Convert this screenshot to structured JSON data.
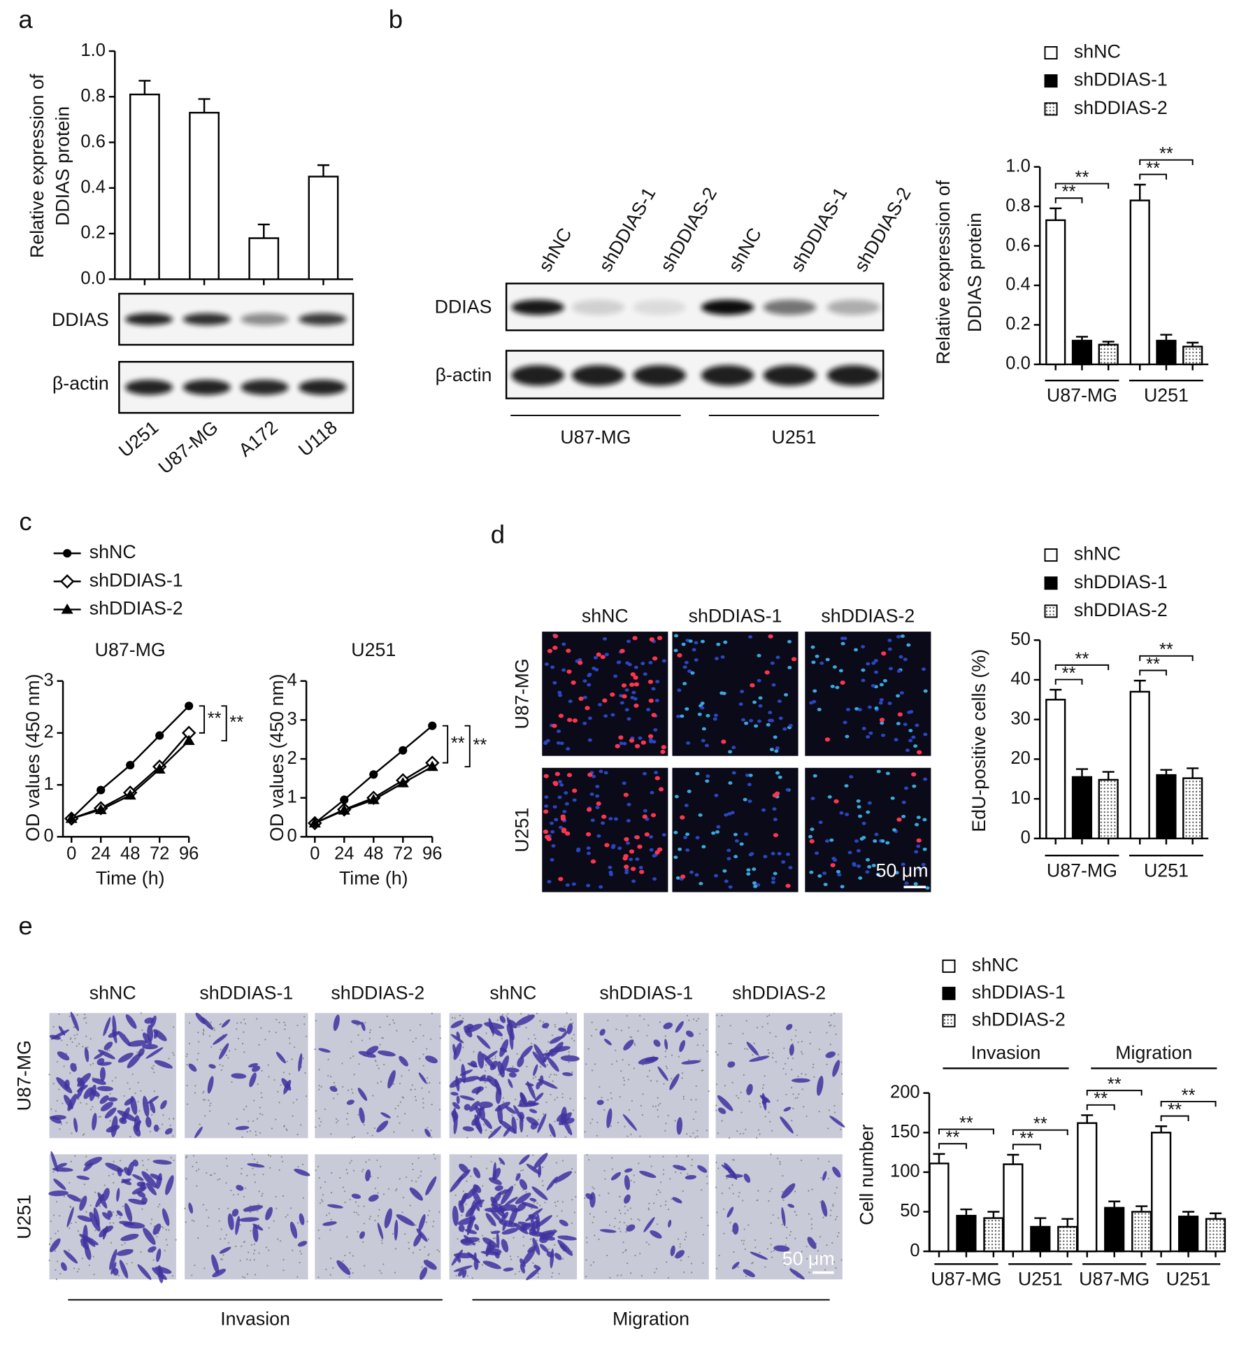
{
  "panel_labels": [
    "a",
    "b",
    "c",
    "d",
    "e"
  ],
  "blots": {
    "a": {
      "rows": [
        "DDIAS",
        "β-actin"
      ]
    },
    "b": {
      "columns": [
        "shNC",
        "shDDIAS-1",
        "shDDIAS-2",
        "shNC",
        "shDDIAS-1",
        "shDDIAS-2"
      ],
      "rows": [
        "DDIAS",
        "β-actin"
      ],
      "groups": [
        "U87-MG",
        "U251"
      ]
    }
  },
  "micrographs": {
    "d": {
      "columns": [
        "shNC",
        "shDDIAS-1",
        "shDDIAS-2"
      ],
      "rows": [
        "U87-MG",
        "U251"
      ],
      "scale": "50 μm"
    },
    "e": {
      "columns": [
        "shNC",
        "shDDIAS-1",
        "shDDIAS-2",
        "shNC",
        "shDDIAS-1",
        "shDDIAS-2"
      ],
      "rows": [
        "U87-MG",
        "U251"
      ],
      "scale": "50 μm",
      "groups": [
        "Invasion",
        "Migration"
      ]
    }
  },
  "chart_data": [
    {
      "type": "bar",
      "y_label": [
        "Relative expression of",
        "DDIAS protein"
      ],
      "categories": [
        "U251",
        "U87-MG",
        "A172",
        "U118"
      ],
      "values": [
        0.81,
        0.73,
        0.18,
        0.45
      ],
      "errors": [
        0.06,
        0.06,
        0.06,
        0.05
      ],
      "color": "#ffffff",
      "ylim": [
        0,
        1
      ],
      "yticks": [
        {
          "value": 0,
          "label": "0.0"
        },
        0.2,
        0.4,
        0.6,
        0.8,
        {
          "value": 1,
          "label": "1.0"
        }
      ]
    },
    {
      "type": "grouped_bar",
      "y_label": [
        "Relative expression of",
        "DDIAS protein"
      ],
      "categories": [
        "U87-MG",
        "U251"
      ],
      "series": [
        {
          "name": "shNC",
          "color": "#ffffff",
          "values": [
            0.73,
            0.83
          ],
          "errors": [
            0.06,
            0.08
          ]
        },
        {
          "name": "shDDIAS-1",
          "color": "#000000",
          "values": [
            0.12,
            0.12
          ],
          "errors": [
            0.02,
            0.03
          ]
        },
        {
          "name": "shDDIAS-2",
          "color": "#ffffff",
          "pattern": "dots",
          "values": [
            0.1,
            0.09
          ],
          "errors": [
            0.015,
            0.02
          ]
        }
      ],
      "ylim": [
        0,
        1
      ],
      "yticks": [
        {
          "value": 0,
          "label": "0.0"
        },
        0.2,
        0.4,
        0.6,
        0.8,
        {
          "value": 1,
          "label": "1.0"
        }
      ],
      "significance": [
        "**",
        "**",
        "**",
        "**"
      ]
    },
    {
      "type": "line",
      "title": "U87-MG",
      "x_label": "Time (h)",
      "y_label": "OD values (450 nm)",
      "x": [
        0,
        24,
        48,
        72,
        96
      ],
      "series": [
        {
          "name": "shNC",
          "marker": "circle",
          "values": [
            0.35,
            0.9,
            1.38,
            1.95,
            2.52
          ],
          "errors": [
            0.03,
            0.08,
            0.04,
            0.07,
            0.06
          ]
        },
        {
          "name": "shDDIAS-1",
          "marker": "diamond",
          "values": [
            0.35,
            0.55,
            0.85,
            1.35,
            2.0
          ],
          "errors": [
            0.03,
            0.05,
            0.07,
            0.05,
            0.07
          ]
        },
        {
          "name": "shDDIAS-2",
          "marker": "triangle",
          "values": [
            0.35,
            0.52,
            0.8,
            1.3,
            1.85
          ],
          "errors": [
            0.03,
            0.04,
            0.05,
            0.05,
            0.06
          ]
        }
      ],
      "xlim": [
        0,
        96
      ],
      "xticks": [
        0,
        24,
        48,
        72,
        96
      ],
      "ylim": [
        0,
        3
      ],
      "yticks": [
        0,
        1,
        2,
        3
      ],
      "significance": [
        "**",
        "**"
      ]
    },
    {
      "type": "line",
      "title": "U251",
      "x_label": "Time (h)",
      "y_label": "OD values (450 nm)",
      "x": [
        0,
        24,
        48,
        72,
        96
      ],
      "series": [
        {
          "marker": "circle",
          "values": [
            0.35,
            0.95,
            1.6,
            2.22,
            2.85
          ],
          "errors": [
            0.03,
            0.1,
            0.04,
            0.05,
            0.06
          ]
        },
        {
          "marker": "diamond",
          "values": [
            0.35,
            0.7,
            1.0,
            1.45,
            1.9
          ],
          "errors": [
            0.03,
            0.05,
            0.1,
            0.06,
            0.05
          ]
        },
        {
          "marker": "triangle",
          "values": [
            0.35,
            0.68,
            0.95,
            1.38,
            1.8
          ],
          "errors": [
            0.03,
            0.04,
            0.06,
            0.05,
            0.05
          ]
        }
      ],
      "xlim": [
        0,
        96
      ],
      "xticks": [
        0,
        24,
        48,
        72,
        96
      ],
      "ylim": [
        0,
        4
      ],
      "yticks": [
        0,
        1,
        2,
        3,
        4
      ],
      "significance": [
        "**",
        "**"
      ]
    },
    {
      "type": "grouped_bar",
      "y_label": "EdU-positive cells (%)",
      "categories": [
        "U87-MG",
        "U251"
      ],
      "series": [
        {
          "name": "shNC",
          "color": "#ffffff",
          "values": [
            35,
            37
          ],
          "errors": [
            2.5,
            2.8
          ]
        },
        {
          "name": "shDDIAS-1",
          "color": "#000000",
          "values": [
            15.5,
            16
          ],
          "errors": [
            2,
            1.3
          ]
        },
        {
          "name": "shDDIAS-2",
          "color": "#ffffff",
          "pattern": "dots",
          "values": [
            14.8,
            15.2
          ],
          "errors": [
            2,
            2.5
          ]
        }
      ],
      "ylim": [
        0,
        50
      ],
      "yticks": [
        0,
        10,
        20,
        30,
        40,
        50
      ],
      "significance": [
        "**",
        "**",
        "**",
        "**"
      ]
    },
    {
      "type": "grouped_bar",
      "y_label": "Cell number",
      "groups": [
        "Invasion",
        "Migration"
      ],
      "categories": [
        "U87-MG",
        "U251",
        "U87-MG",
        "U251"
      ],
      "series": [
        {
          "name": "shNC",
          "color": "#ffffff",
          "values": [
            111,
            110,
            162,
            150
          ],
          "errors": [
            12,
            12,
            10,
            8
          ]
        },
        {
          "name": "shDDIAS-1",
          "color": "#000000",
          "values": [
            45,
            31,
            55,
            44
          ],
          "errors": [
            8,
            11,
            8,
            6
          ]
        },
        {
          "name": "shDDIAS-2",
          "color": "#ffffff",
          "pattern": "dots",
          "values": [
            42,
            31,
            50,
            41
          ],
          "errors": [
            8,
            10,
            7,
            7
          ]
        }
      ],
      "ylim": [
        0,
        200
      ],
      "yticks": [
        0,
        50,
        100,
        150,
        200
      ],
      "significance": [
        "**",
        "**",
        "**",
        "**",
        "**",
        "**",
        "**",
        "**"
      ]
    }
  ]
}
